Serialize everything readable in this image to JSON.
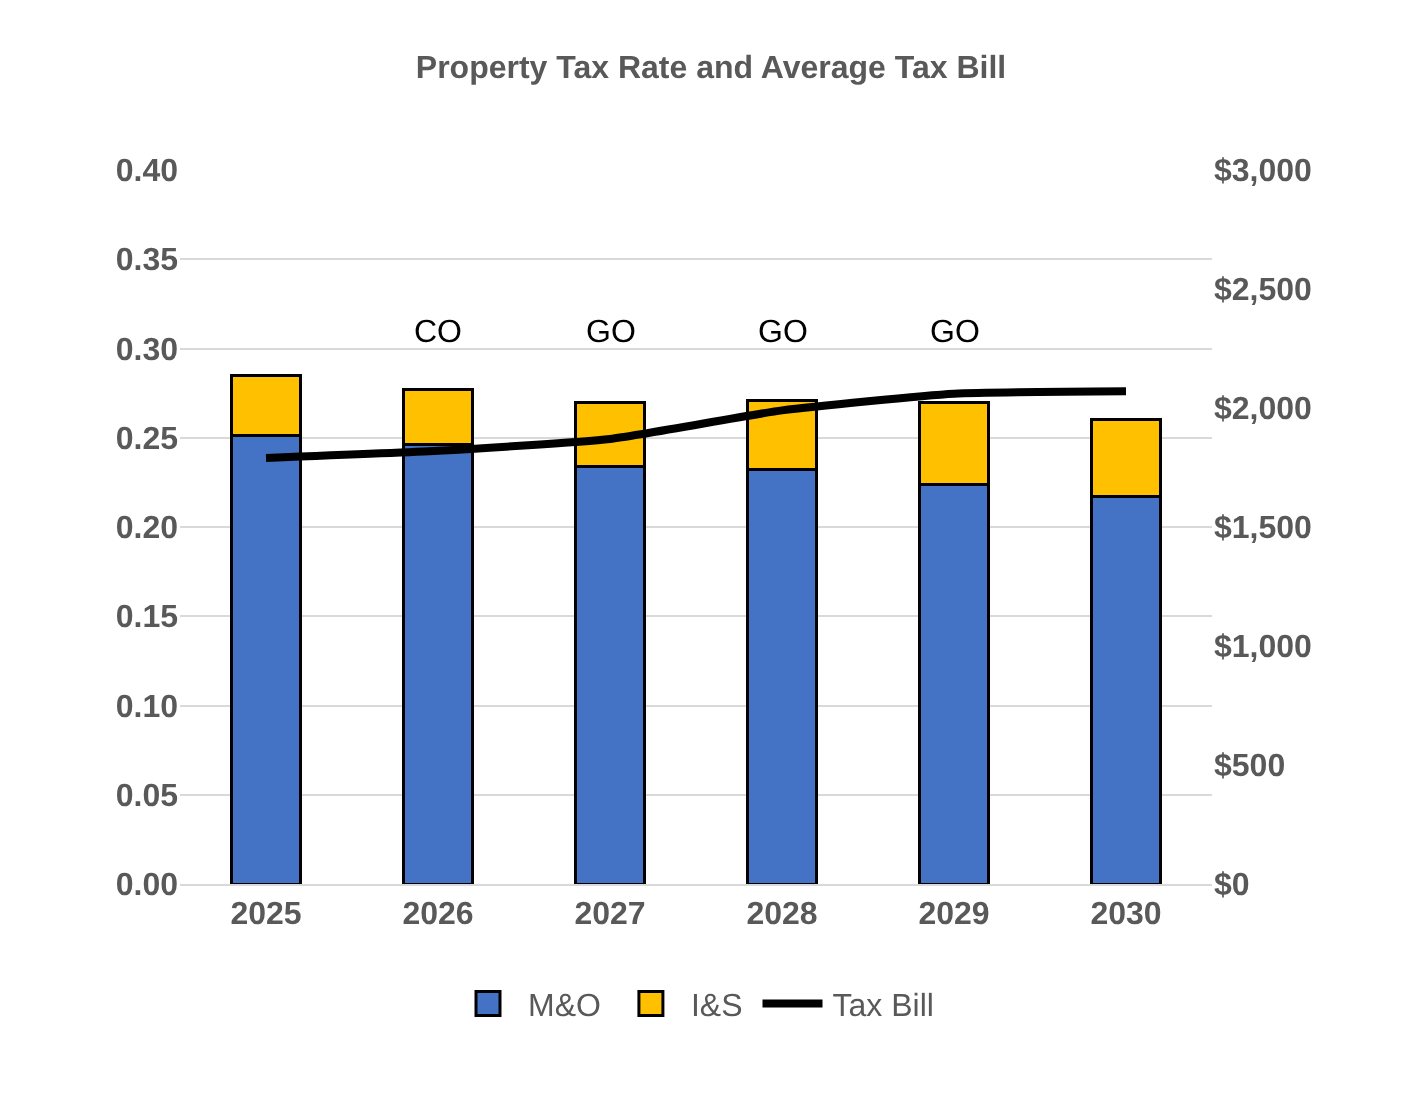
{
  "chart_data": {
    "type": "bar",
    "title": "Property Tax Rate and Average Tax Bill",
    "stacked": true,
    "categories": [
      "2025",
      "2026",
      "2027",
      "2028",
      "2029",
      "2030"
    ],
    "series": [
      {
        "name": "M&O",
        "color": "#4472c4",
        "values": [
          0.251,
          0.246,
          0.234,
          0.232,
          0.224,
          0.217
        ]
      },
      {
        "name": "I&S",
        "color": "#ffc000",
        "values": [
          0.034,
          0.031,
          0.036,
          0.039,
          0.046,
          0.043
        ]
      },
      {
        "name": "Tax Bill",
        "color": "#000000",
        "type": "line",
        "axis": "y2",
        "values": [
          1790,
          1820,
          1870,
          1990,
          2060,
          2070
        ]
      }
    ],
    "ylim": [
      0,
      0.4
    ],
    "yticks": [
      {
        "value": 0,
        "label": "0.00"
      },
      {
        "value": 0.05,
        "label": "0.05"
      },
      {
        "value": 0.1,
        "label": "0.10"
      },
      {
        "value": 0.15,
        "label": "0.15"
      },
      {
        "value": 0.2,
        "label": "0.20"
      },
      {
        "value": 0.25,
        "label": "0.25"
      },
      {
        "value": 0.3,
        "label": "0.30"
      },
      {
        "value": 0.35,
        "label": "0.35"
      },
      {
        "value": 0.4,
        "label": "0.40"
      }
    ],
    "y2lim": [
      0,
      3000
    ],
    "y2ticks": [
      {
        "value": 0,
        "label": "$0"
      },
      {
        "value": 500,
        "label": "$500"
      },
      {
        "value": 1000,
        "label": "$1,000"
      },
      {
        "value": 1500,
        "label": "$1,500"
      },
      {
        "value": 2000,
        "label": "$2,000"
      },
      {
        "value": 2500,
        "label": "$2,500"
      },
      {
        "value": 3000,
        "label": "$3,000"
      }
    ],
    "annotations": [
      "CO",
      "GO",
      "GO",
      "GO"
    ],
    "grid": "y",
    "legend": "bottom",
    "marker": "none",
    "line_style": "solid"
  }
}
